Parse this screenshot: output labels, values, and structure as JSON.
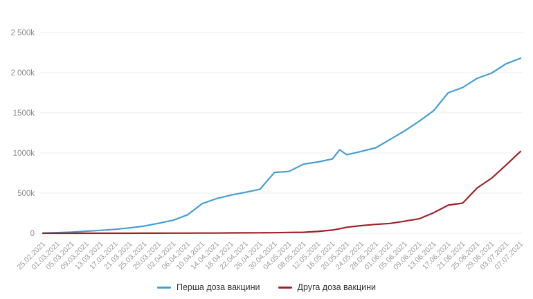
{
  "chart_data": {
    "type": "line",
    "title": "",
    "ylim": [
      0,
      2500
    ],
    "value_unit": "k",
    "grid": "horizontal",
    "legend_position": "bottom",
    "y_ticks": [
      0,
      500,
      1000,
      1500,
      2000,
      2500
    ],
    "y_tick_labels": [
      "0",
      "500k",
      "1000k",
      "1500k",
      "2 000k",
      "2 500k"
    ],
    "x_tick_labels": [
      "25.02.2021",
      "01.03.2021",
      "05.03.2021",
      "09.03.2021",
      "13.03.2021",
      "17.03.2021",
      "21.03.2021",
      "25.03.2021",
      "29.03.2021",
      "02.04.2021",
      "06.04.2021",
      "10.04.2021",
      "14.04.2021",
      "18.04.2021",
      "22.04.2021",
      "26.04.2021",
      "30.04.2021",
      "04.05.2021",
      "08.05.2021",
      "12.05.2021",
      "16.05.2021",
      "20.05.2021",
      "24.05.2021",
      "28.05.2021",
      "01.06.2021",
      "05.06.2021",
      "09.06.2021",
      "13.06.2021",
      "17.06.2021",
      "21.06.2021",
      "25.06.2021",
      "29.06.2021",
      "03.07.2021",
      "07.07.2021"
    ],
    "x": [
      "25.02.2021",
      "01.03.2021",
      "05.03.2021",
      "09.03.2021",
      "13.03.2021",
      "17.03.2021",
      "21.03.2021",
      "25.03.2021",
      "29.03.2021",
      "02.04.2021",
      "06.04.2021",
      "10.04.2021",
      "14.04.2021",
      "18.04.2021",
      "22.04.2021",
      "26.04.2021",
      "30.04.2021",
      "04.05.2021",
      "08.05.2021",
      "12.05.2021",
      "16.05.2021",
      "18.05.2021",
      "20.05.2021",
      "24.05.2021",
      "28.05.2021",
      "01.06.2021",
      "05.06.2021",
      "09.06.2021",
      "13.06.2021",
      "17.06.2021",
      "21.06.2021",
      "25.06.2021",
      "29.06.2021",
      "03.07.2021",
      "07.07.2021"
    ],
    "series": [
      {
        "name": "Перша доза вакцини",
        "color": "#449ed2",
        "values": [
          3,
          8,
          14,
          26,
          36,
          49,
          67,
          90,
          124,
          162,
          230,
          368,
          432,
          476,
          510,
          548,
          758,
          770,
          860,
          888,
          925,
          1040,
          978,
          1020,
          1065,
          1170,
          1277,
          1395,
          1527,
          1750,
          1815,
          1930,
          1995,
          2110,
          2180
        ]
      },
      {
        "name": "Друга доза вакцини",
        "color": "#9d2329",
        "values": [
          0,
          0,
          0,
          0,
          0,
          0,
          0,
          1,
          1,
          2,
          2,
          3,
          3,
          4,
          5,
          6,
          7,
          10,
          12,
          22,
          40,
          55,
          75,
          95,
          110,
          122,
          150,
          180,
          255,
          350,
          375,
          565,
          685,
          850,
          1020
        ]
      }
    ]
  }
}
